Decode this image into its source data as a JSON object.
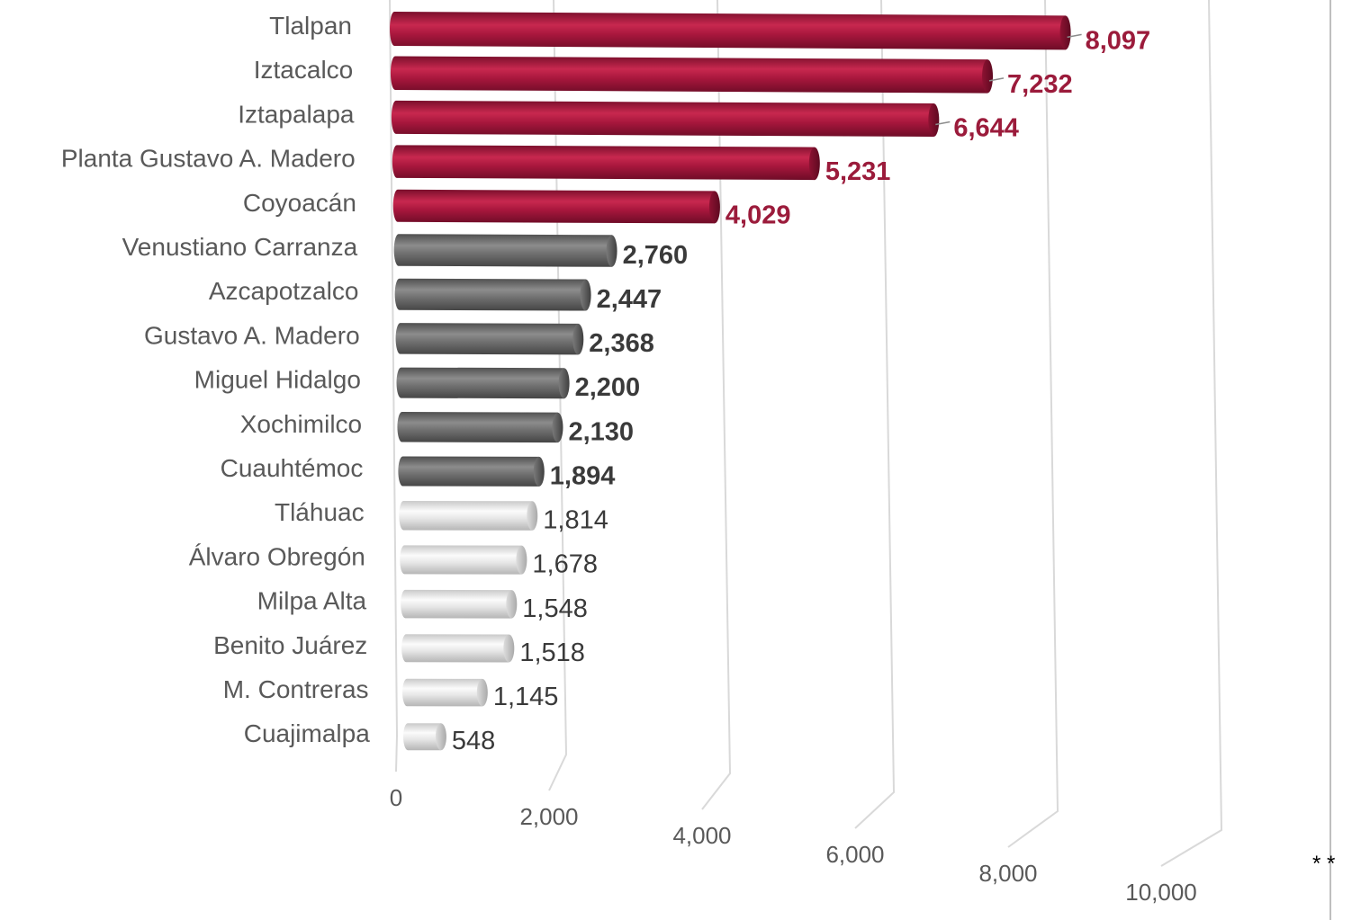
{
  "chart_data": {
    "type": "bar",
    "orientation": "horizontal",
    "style": "3d-cylinder",
    "categories": [
      "Tlalpan",
      "Iztacalco",
      "Iztapalapa",
      "Planta Gustavo A. Madero",
      "Coyoacán",
      "Venustiano Carranza",
      "Azcapotzalco",
      "Gustavo A. Madero",
      "Miguel Hidalgo",
      "Xochimilco",
      "Cuauhtémoc",
      "Tláhuac",
      "Álvaro Obregón",
      "Milpa Alta",
      "Benito Juárez",
      "M. Contreras",
      "Cuajimalpa"
    ],
    "values": [
      8097,
      7232,
      6644,
      5231,
      4029,
      2760,
      2447,
      2368,
      2200,
      2130,
      1894,
      1814,
      1678,
      1548,
      1518,
      1145,
      548
    ],
    "value_labels": [
      "8,097",
      "7,232",
      "6,644",
      "5,231",
      "4,029",
      "2,760",
      "2,447",
      "2,368",
      "2,200",
      "2,130",
      "1,894",
      "1,814",
      "1,678",
      "1,548",
      "1,518",
      "1,145",
      "548"
    ],
    "groups": [
      "high",
      "high",
      "high",
      "high",
      "high",
      "mid",
      "mid",
      "mid",
      "mid",
      "mid",
      "mid",
      "low",
      "low",
      "low",
      "low",
      "low",
      "low"
    ],
    "group_colors": {
      "high": "#a8173d",
      "mid": "#6f6f6f",
      "low": "#e8e8e8"
    },
    "label_colors": {
      "high": "#9b1b3b",
      "mid": "#3a3a3a",
      "low": "#3a3a3a"
    },
    "xlim": [
      0,
      10000
    ],
    "x_ticks": [
      0,
      2000,
      4000,
      6000,
      8000,
      10000
    ],
    "x_tick_labels": [
      "0",
      "2,000",
      "4,000",
      "6,000",
      "8,000",
      "10,000"
    ],
    "grid": true,
    "title": "",
    "xlabel": "",
    "ylabel": ""
  },
  "footnote": "* *"
}
